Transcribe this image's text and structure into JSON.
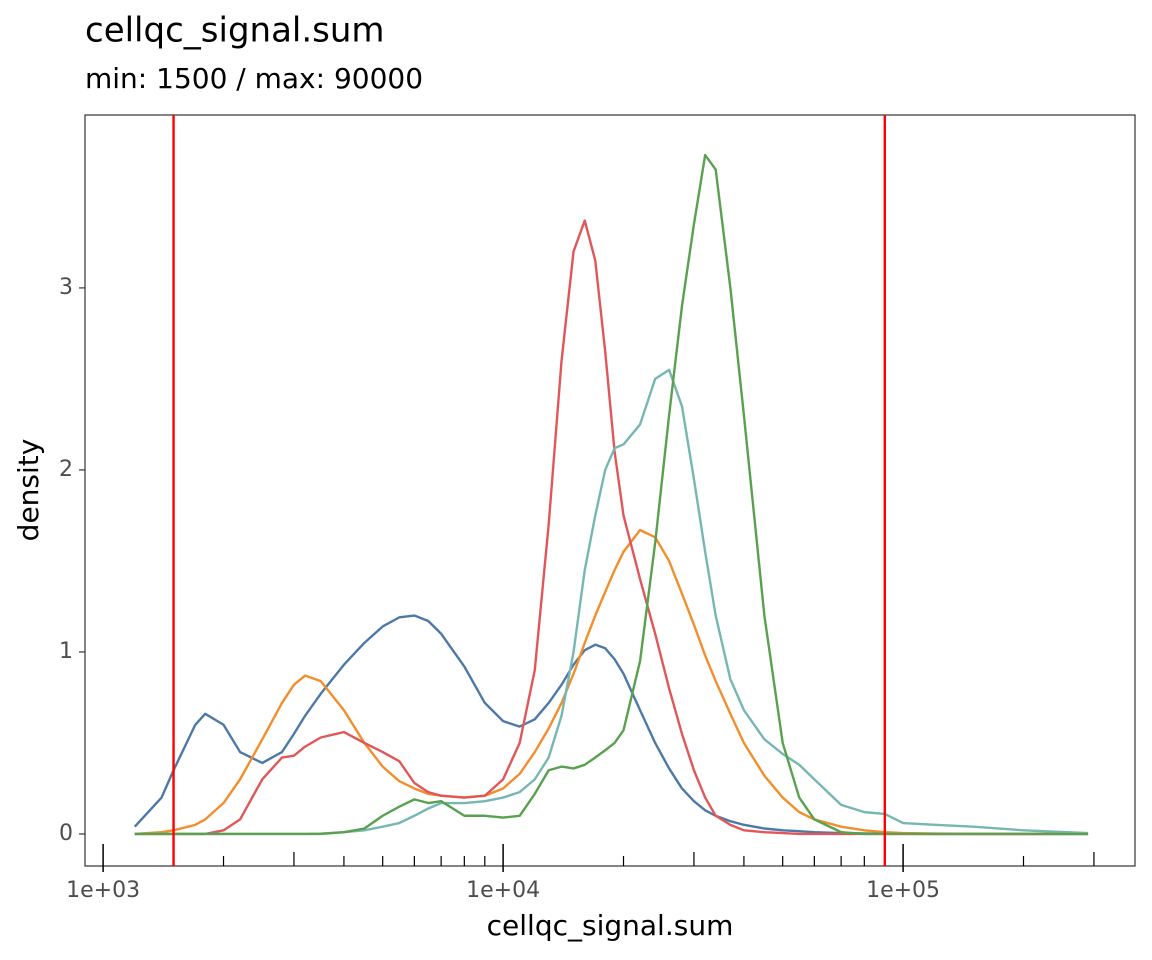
{
  "chart_data": {
    "type": "line",
    "title": "cellqc_signal.sum",
    "subtitle": "min: 1500 / max: 90000",
    "x_label": "cellqc_signal.sum",
    "y_label": "density",
    "log_x": true,
    "grid": false,
    "xlim": [
      901,
      380000
    ],
    "ylim": [
      -0.176,
      3.95
    ],
    "xticks": [
      {
        "value": 1000,
        "label": "1e+03"
      },
      {
        "value": 10000,
        "label": "1e+04"
      },
      {
        "value": 100000,
        "label": "1e+05"
      }
    ],
    "xminorticks": [
      2000,
      3000,
      4000,
      5000,
      6000,
      7000,
      8000,
      9000,
      20000,
      30000,
      40000,
      50000,
      60000,
      70000,
      80000,
      90000,
      200000,
      300000
    ],
    "yticks": [
      0,
      1,
      2,
      3
    ],
    "thresholds": [
      1500,
      90000
    ],
    "threshold_color": "#ff0000",
    "x": [
      1200,
      1400,
      1500,
      1700,
      1800,
      2000,
      2200,
      2500,
      2800,
      3000,
      3200,
      3500,
      4000,
      4500,
      5000,
      5500,
      6000,
      6500,
      7000,
      8000,
      9000,
      10000,
      11000,
      12000,
      13000,
      14000,
      15000,
      16000,
      17000,
      18000,
      19000,
      20000,
      22000,
      24000,
      26000,
      28000,
      30000,
      32000,
      34000,
      37000,
      40000,
      45000,
      50000,
      55000,
      60000,
      70000,
      80000,
      90000,
      100000,
      120000,
      150000,
      200000,
      290000
    ],
    "series": [
      {
        "color": "#4e79a7",
        "values": [
          0.04,
          0.2,
          0.35,
          0.6,
          0.66,
          0.6,
          0.45,
          0.39,
          0.45,
          0.55,
          0.65,
          0.77,
          0.93,
          1.05,
          1.14,
          1.19,
          1.2,
          1.17,
          1.1,
          0.92,
          0.72,
          0.62,
          0.59,
          0.63,
          0.72,
          0.82,
          0.93,
          1.01,
          1.04,
          1.02,
          0.96,
          0.88,
          0.68,
          0.5,
          0.36,
          0.25,
          0.18,
          0.13,
          0.1,
          0.07,
          0.05,
          0.03,
          0.02,
          0.015,
          0.01,
          0.005,
          0.003,
          0.002,
          0.001,
          0,
          0,
          0,
          0
        ]
      },
      {
        "color": "#f28e2b",
        "values": [
          0,
          0.01,
          0.02,
          0.05,
          0.08,
          0.17,
          0.3,
          0.52,
          0.72,
          0.82,
          0.87,
          0.84,
          0.68,
          0.5,
          0.37,
          0.29,
          0.25,
          0.22,
          0.21,
          0.2,
          0.21,
          0.25,
          0.33,
          0.45,
          0.58,
          0.72,
          0.88,
          1.05,
          1.2,
          1.33,
          1.45,
          1.55,
          1.67,
          1.63,
          1.5,
          1.32,
          1.15,
          0.98,
          0.84,
          0.66,
          0.5,
          0.32,
          0.2,
          0.12,
          0.08,
          0.04,
          0.02,
          0.01,
          0.005,
          0.002,
          0,
          0,
          0
        ]
      },
      {
        "color": "#e15759",
        "values": [
          0,
          0,
          0,
          0,
          0,
          0.02,
          0.08,
          0.3,
          0.42,
          0.43,
          0.48,
          0.53,
          0.56,
          0.5,
          0.45,
          0.4,
          0.28,
          0.23,
          0.21,
          0.2,
          0.21,
          0.3,
          0.5,
          0.9,
          1.7,
          2.6,
          3.2,
          3.37,
          3.15,
          2.65,
          2.1,
          1.75,
          1.4,
          1.1,
          0.8,
          0.55,
          0.35,
          0.2,
          0.1,
          0.05,
          0.02,
          0.01,
          0.005,
          0,
          0,
          0,
          0,
          0,
          0,
          0,
          0,
          0,
          0
        ]
      },
      {
        "color": "#76b7b2",
        "values": [
          0,
          0,
          0,
          0,
          0,
          0,
          0,
          0,
          0,
          0,
          0,
          0.002,
          0.01,
          0.02,
          0.04,
          0.06,
          0.1,
          0.14,
          0.17,
          0.17,
          0.18,
          0.2,
          0.23,
          0.3,
          0.42,
          0.65,
          1.0,
          1.45,
          1.75,
          2.0,
          2.12,
          2.14,
          2.25,
          2.5,
          2.55,
          2.35,
          1.95,
          1.55,
          1.2,
          0.85,
          0.68,
          0.52,
          0.44,
          0.38,
          0.3,
          0.16,
          0.12,
          0.11,
          0.06,
          0.05,
          0.04,
          0.02,
          0.005
        ]
      },
      {
        "color": "#59a14f",
        "values": [
          0,
          0,
          0,
          0,
          0,
          0,
          0,
          0,
          0,
          0,
          0,
          0,
          0.01,
          0.03,
          0.1,
          0.15,
          0.19,
          0.17,
          0.18,
          0.1,
          0.1,
          0.09,
          0.1,
          0.22,
          0.35,
          0.37,
          0.36,
          0.38,
          0.42,
          0.46,
          0.5,
          0.57,
          0.95,
          1.6,
          2.3,
          2.9,
          3.35,
          3.73,
          3.65,
          3.0,
          2.3,
          1.2,
          0.5,
          0.2,
          0.08,
          0.01,
          0,
          0,
          0,
          0,
          0,
          0,
          0
        ]
      }
    ]
  }
}
